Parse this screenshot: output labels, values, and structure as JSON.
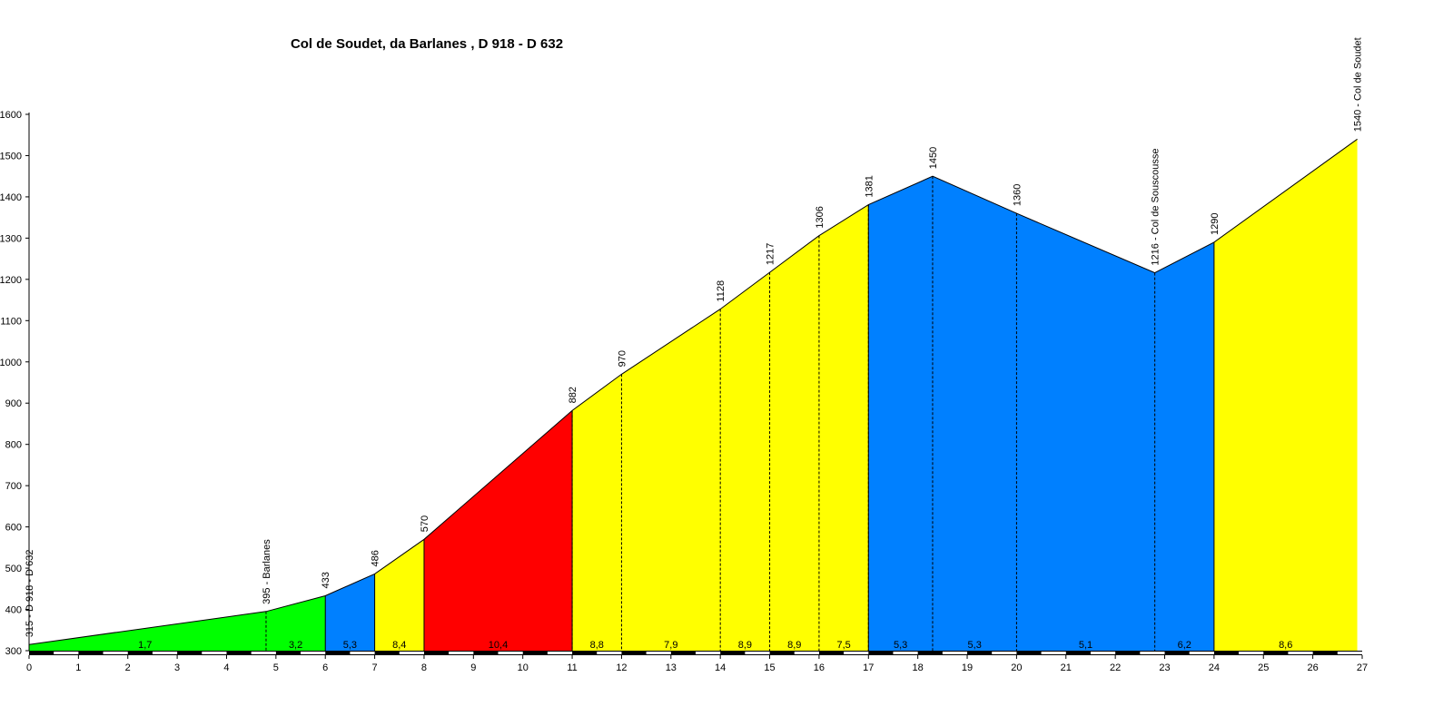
{
  "chart_data": {
    "type": "area",
    "title": "Col de Soudet, da Barlanes , D 918 - D 632",
    "xlabel": "",
    "ylabel": "",
    "xlim": [
      0,
      27
    ],
    "ylim": [
      300,
      1600
    ],
    "x_ticks": [
      "0",
      "1",
      "2",
      "3",
      "4",
      "5",
      "6",
      "7",
      "8",
      "9",
      "10",
      "11",
      "12",
      "13",
      "14",
      "15",
      "16",
      "17",
      "18",
      "19",
      "20",
      "21",
      "22",
      "23",
      "24",
      "25",
      "26",
      "27"
    ],
    "y_ticks": [
      "300",
      "400",
      "500",
      "600",
      "700",
      "800",
      "900",
      "1000",
      "1100",
      "1200",
      "1300",
      "1400",
      "1500",
      "1600"
    ],
    "points": [
      {
        "x": 0,
        "y": 315,
        "label": "315 - D 918 - D 632"
      },
      {
        "x": 4.8,
        "y": 395,
        "label": "395 - Barlanes"
      },
      {
        "x": 6,
        "y": 433,
        "label": "433"
      },
      {
        "x": 7,
        "y": 486,
        "label": "486"
      },
      {
        "x": 8,
        "y": 570,
        "label": "570"
      },
      {
        "x": 11,
        "y": 882,
        "label": "882"
      },
      {
        "x": 12,
        "y": 970,
        "label": "970"
      },
      {
        "x": 14,
        "y": 1128,
        "label": "1128"
      },
      {
        "x": 15,
        "y": 1217,
        "label": "1217"
      },
      {
        "x": 16,
        "y": 1306,
        "label": "1306"
      },
      {
        "x": 17,
        "y": 1381,
        "label": "1381"
      },
      {
        "x": 18.3,
        "y": 1450,
        "label": "1450"
      },
      {
        "x": 20,
        "y": 1360,
        "label": "1360"
      },
      {
        "x": 22.8,
        "y": 1216,
        "label": "1216 - Col de Souscousse"
      },
      {
        "x": 24,
        "y": 1290,
        "label": "1290"
      },
      {
        "x": 26.9,
        "y": 1540,
        "label": "1540 - Col de Soudet"
      }
    ],
    "segments": [
      {
        "from": 0,
        "to": 6,
        "color": "#00ff00",
        "grades": [
          {
            "x": 2.35,
            "text": "1,7"
          },
          {
            "x": 5.4,
            "text": "3,2"
          }
        ]
      },
      {
        "from": 6,
        "to": 7,
        "color": "#0080ff",
        "grades": [
          {
            "x": 6.5,
            "text": "5,3"
          }
        ]
      },
      {
        "from": 7,
        "to": 8,
        "color": "#ffff00",
        "grades": [
          {
            "x": 7.5,
            "text": "8,4"
          }
        ]
      },
      {
        "from": 8,
        "to": 11,
        "color": "#ff0000",
        "grades": [
          {
            "x": 9.5,
            "text": "10,4"
          }
        ]
      },
      {
        "from": 11,
        "to": 17,
        "color": "#ffff00",
        "grades": [
          {
            "x": 11.5,
            "text": "8,8"
          },
          {
            "x": 13,
            "text": "7,9"
          },
          {
            "x": 14.5,
            "text": "8,9"
          },
          {
            "x": 15.5,
            "text": "8,9"
          },
          {
            "x": 16.5,
            "text": "7,5"
          }
        ]
      },
      {
        "from": 17,
        "to": 24,
        "color": "#0080ff",
        "grades": [
          {
            "x": 17.65,
            "text": "5,3"
          },
          {
            "x": 19.15,
            "text": "5,3"
          },
          {
            "x": 21.4,
            "text": "5,1"
          },
          {
            "x": 23.4,
            "text": "6,2"
          }
        ]
      },
      {
        "from": 24,
        "to": 26.9,
        "color": "#ffff00",
        "grades": [
          {
            "x": 25.45,
            "text": "8,6"
          }
        ]
      }
    ],
    "dashed_dividers_at": [
      4.8,
      11,
      12,
      14,
      15,
      16,
      17,
      18.3,
      20,
      22.8
    ],
    "grid": false,
    "legend": "none"
  }
}
